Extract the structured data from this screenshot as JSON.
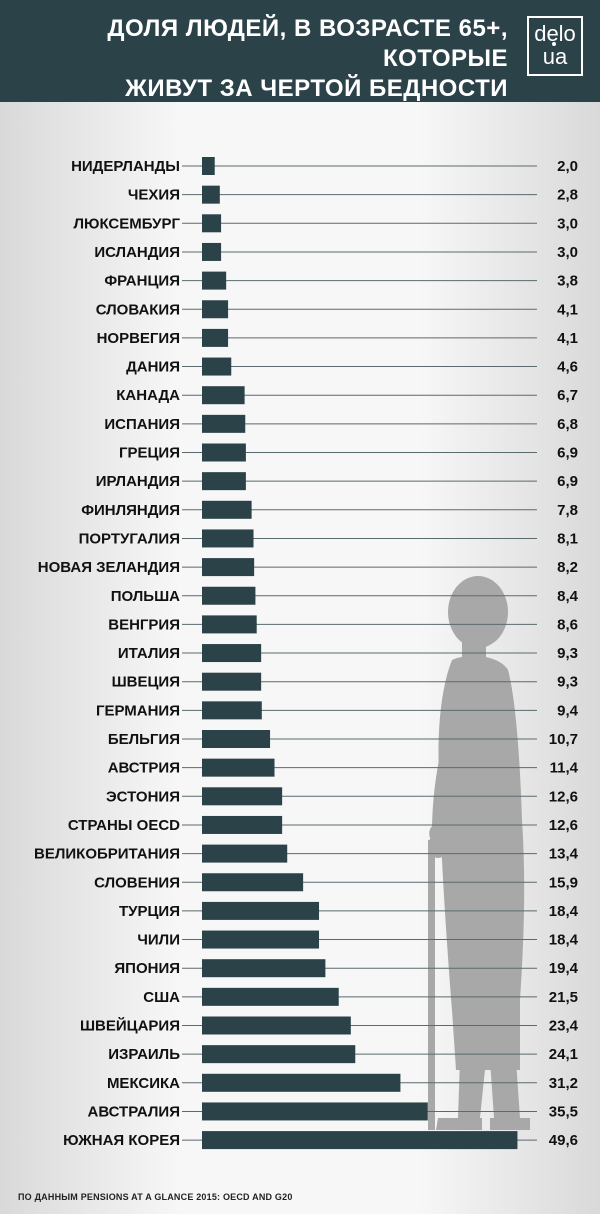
{
  "header": {
    "title_line1": "ДОЛЯ ЛЮДЕЙ, В ВОЗРАСТЕ 65+, КОТОРЫЕ",
    "title_line2": "ЖИВУТ ЗА ЧЕРТОЙ БЕДНОСТИ",
    "logo_line1": "delo",
    "logo_line2": "ua"
  },
  "colors": {
    "header_bg": "#2c4249",
    "bar": "#2b4348",
    "silhouette": "#a8a8a8"
  },
  "source": "ПО ДАННЫМ PENSIONS AT A GLANCE 2015: OECD AND G20",
  "chart_data": {
    "type": "bar",
    "orientation": "horizontal",
    "categories": [
      "НИДЕРЛАНДЫ",
      "ЧЕХИЯ",
      "ЛЮКСЕМБУРГ",
      "ИСЛАНДИЯ",
      "ФРАНЦИЯ",
      "СЛОВАКИЯ",
      "НОРВЕГИЯ",
      "ДАНИЯ",
      "КАНАДА",
      "ИСПАНИЯ",
      "ГРЕЦИЯ",
      "ИРЛАНДИЯ",
      "ФИНЛЯНДИЯ",
      "ПОРТУГАЛИЯ",
      "НОВАЯ ЗЕЛАНДИЯ",
      "ПОЛЬША",
      "ВЕНГРИЯ",
      "ИТАЛИЯ",
      "ШВЕЦИЯ",
      "ГЕРМАНИЯ",
      "БЕЛЬГИЯ",
      "АВСТРИЯ",
      "ЭСТОНИЯ",
      "СТРАНЫ OECD",
      "ВЕЛИКОБРИТАНИЯ",
      "СЛОВЕНИЯ",
      "ТУРЦИЯ",
      "ЧИЛИ",
      "ЯПОНИЯ",
      "США",
      "ШВЕЙЦАРИЯ",
      "ИЗРАИЛЬ",
      "МЕКСИКА",
      "АВСТРАЛИЯ",
      "ЮЖНАЯ КОРЕЯ"
    ],
    "values": [
      2.0,
      2.8,
      3.0,
      3.0,
      3.8,
      4.1,
      4.1,
      4.6,
      6.7,
      6.8,
      6.9,
      6.9,
      7.8,
      8.1,
      8.2,
      8.4,
      8.6,
      9.3,
      9.3,
      9.4,
      10.7,
      11.4,
      12.6,
      12.6,
      13.4,
      15.9,
      18.4,
      18.4,
      19.4,
      21.5,
      23.4,
      24.1,
      31.2,
      35.5,
      49.6
    ],
    "value_labels": [
      "2,0",
      "2,8",
      "3,0",
      "3,0",
      "3,8",
      "4,1",
      "4,1",
      "4,6",
      "6,7",
      "6,8",
      "6,9",
      "6,9",
      "7,8",
      "8,1",
      "8,2",
      "8,4",
      "8,6",
      "9,3",
      "9,3",
      "9,4",
      "10,7",
      "11,4",
      "12,6",
      "12,6",
      "13,4",
      "15,9",
      "18,4",
      "18,4",
      "19,4",
      "21,5",
      "23,4",
      "24,1",
      "31,2",
      "35,5",
      "49,6"
    ],
    "xlim": [
      0,
      50
    ],
    "grid": false,
    "title": "ДОЛЯ ЛЮДЕЙ, В ВОЗРАСТЕ 65+, КОТОРЫЕ ЖИВУТ ЗА ЧЕРТОЙ БЕДНОСТИ"
  }
}
